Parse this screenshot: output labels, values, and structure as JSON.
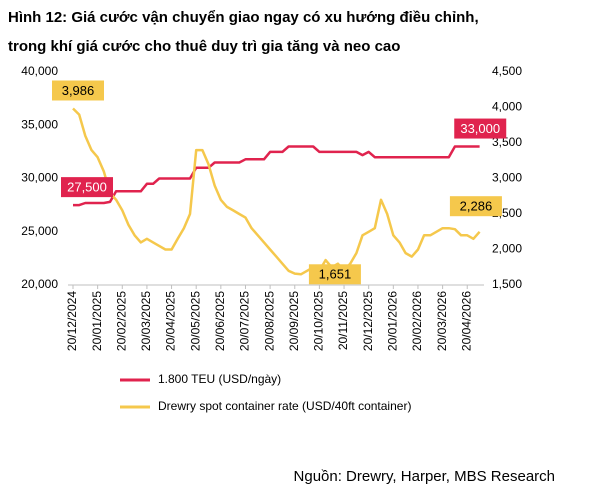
{
  "chart_data": {
    "type": "line",
    "title": "Hình 12: Giá cước vận chuyển giao ngay có xu hướng điều chỉnh,",
    "subtitle": "trong khí giá cước cho thuê duy trì gia tăng và neo cao",
    "source": "Nguồn: Drewry, Harper, MBS Research",
    "categories": [
      "20/12/2024",
      null,
      null,
      null,
      "20/01/2025",
      null,
      null,
      null,
      "20/02/2025",
      null,
      null,
      null,
      "20/03/2025",
      null,
      null,
      null,
      "20/04/2025",
      null,
      null,
      null,
      "20/05/2025",
      null,
      null,
      null,
      "20/06/2025",
      null,
      null,
      null,
      "20/07/2025",
      null,
      null,
      null,
      "20/08/2025",
      null,
      null,
      null,
      "20/09/2025",
      null,
      null,
      null,
      "20/10/2025",
      null,
      null,
      null,
      "20/11/2025",
      null,
      null,
      null,
      "20/12/2025",
      null,
      null,
      null,
      "20/01/2026",
      null,
      null,
      null,
      "20/02/2026",
      null,
      null,
      null,
      "20/03/2026",
      null,
      null,
      null,
      "20/04/2026",
      null,
      null
    ],
    "series": [
      {
        "name": "1.800 TEU (USD/ngày)",
        "color": "#e0234e",
        "axis": "y",
        "values": [
          27500,
          27500,
          27700,
          27700,
          27700,
          27700,
          27800,
          28800,
          28800,
          28800,
          28800,
          28800,
          29500,
          29500,
          30000,
          30000,
          30000,
          30000,
          30000,
          30000,
          31000,
          31000,
          31000,
          31500,
          31500,
          31500,
          31500,
          31500,
          31800,
          31800,
          31800,
          31800,
          32500,
          32500,
          32500,
          33000,
          33000,
          33000,
          33000,
          33000,
          32500,
          32500,
          32500,
          32500,
          32500,
          32500,
          32500,
          32200,
          32500,
          32000,
          32000,
          32000,
          32000,
          32000,
          32000,
          32000,
          32000,
          32000,
          32000,
          32000,
          32000,
          32000,
          33000,
          33000,
          33000,
          33000,
          33000
        ],
        "value_labels": [
          "27,500",
          null,
          null,
          null,
          null,
          null,
          null,
          null,
          null,
          null,
          null,
          null,
          null,
          null,
          null,
          null,
          null,
          null,
          null,
          null,
          null,
          null,
          null,
          null,
          null,
          null,
          null,
          null,
          null,
          null,
          null,
          null,
          null,
          null,
          null,
          null,
          null,
          null,
          null,
          null,
          null,
          null,
          null,
          null,
          null,
          null,
          null,
          null,
          null,
          null,
          null,
          null,
          null,
          null,
          null,
          null,
          null,
          null,
          null,
          null,
          null,
          null,
          null,
          null,
          "33,000",
          null,
          null
        ]
      },
      {
        "name": "Drewry spot container rate (USD/40ft container)",
        "color": "#f5c84c",
        "axis": "y2",
        "values": [
          3986,
          3900,
          3600,
          3400,
          3300,
          3100,
          2800,
          2700,
          2550,
          2350,
          2200,
          2100,
          2150,
          2100,
          2050,
          2000,
          2000,
          2150,
          2300,
          2500,
          3400,
          3400,
          3200,
          2900,
          2700,
          2600,
          2550,
          2500,
          2450,
          2300,
          2200,
          2100,
          2000,
          1900,
          1800,
          1700,
          1660,
          1651,
          1700,
          1750,
          1700,
          1850,
          1750,
          1800,
          1700,
          1800,
          1950,
          2200,
          2250,
          2300,
          2700,
          2500,
          2200,
          2100,
          1950,
          1900,
          2000,
          2200,
          2200,
          2250,
          2300,
          2300,
          2286,
          2200,
          2200,
          2150,
          2250
        ],
        "value_labels": [
          "3,986",
          null,
          null,
          null,
          null,
          null,
          null,
          null,
          null,
          null,
          null,
          null,
          null,
          null,
          null,
          null,
          null,
          null,
          null,
          null,
          null,
          null,
          null,
          null,
          null,
          null,
          null,
          null,
          null,
          null,
          null,
          null,
          null,
          null,
          null,
          null,
          null,
          "1,651",
          null,
          null,
          null,
          null,
          null,
          null,
          null,
          null,
          null,
          null,
          null,
          null,
          null,
          null,
          null,
          null,
          null,
          null,
          null,
          null,
          null,
          null,
          null,
          null,
          "2,286",
          null,
          null,
          null,
          null
        ]
      }
    ],
    "ylim": [
      20000,
      40000
    ],
    "yticks": [
      {
        "value": 20000,
        "label": "20,000"
      },
      {
        "value": 25000,
        "label": "25,000"
      },
      {
        "value": 30000,
        "label": "30,000"
      },
      {
        "value": 35000,
        "label": "35,000"
      },
      {
        "value": 40000,
        "label": "40,000"
      }
    ],
    "y2lim": [
      1500,
      4500
    ],
    "y2ticks": [
      {
        "value": 1500,
        "label": "1,500"
      },
      {
        "value": 2000,
        "label": "2,000"
      },
      {
        "value": 2500,
        "label": "2,500"
      },
      {
        "value": 3000,
        "label": "3,000"
      },
      {
        "value": 3500,
        "label": "3,500"
      },
      {
        "value": 4000,
        "label": "4,000"
      },
      {
        "value": 4500,
        "label": "4,500"
      }
    ],
    "grid": false,
    "legend": "bottom"
  }
}
